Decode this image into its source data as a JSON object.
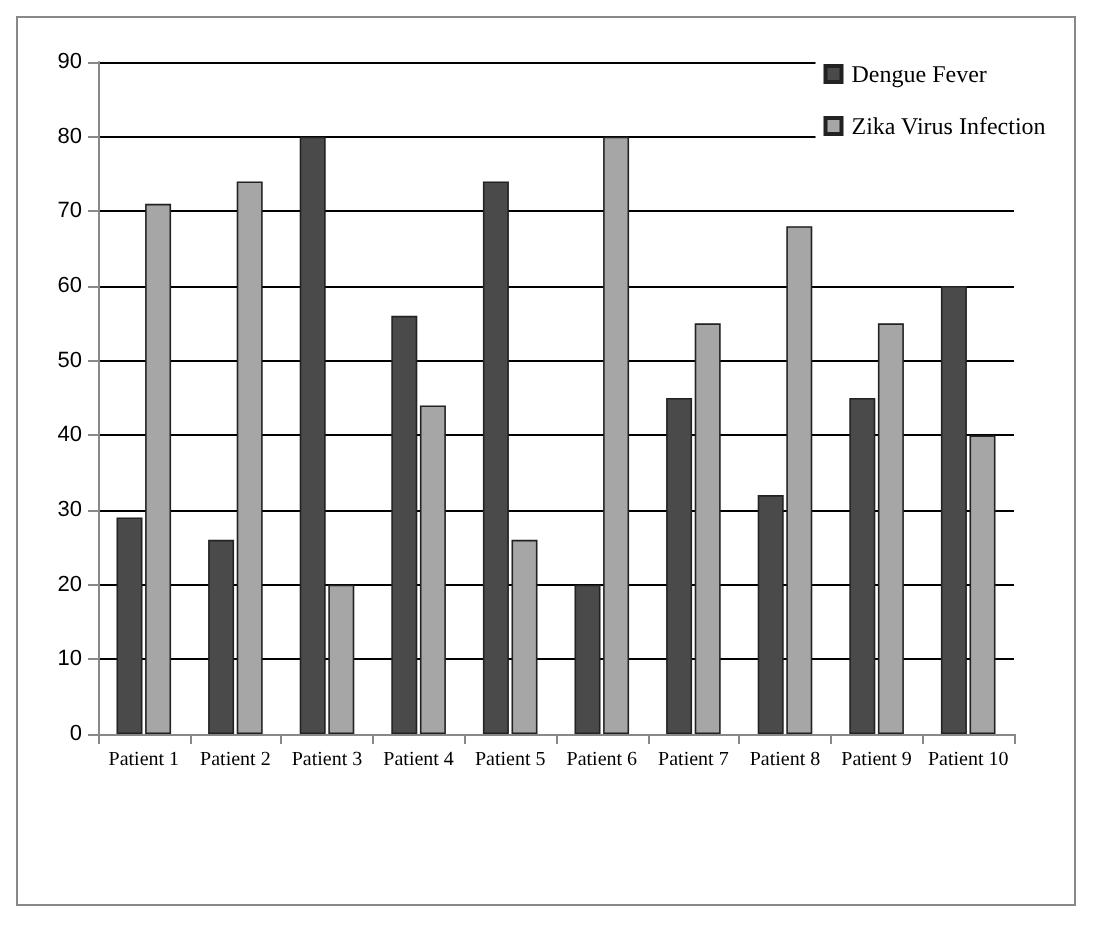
{
  "chart_data": {
    "type": "bar",
    "categories": [
      "Patient 1",
      "Patient 2",
      "Patient 3",
      "Patient 4",
      "Patient 5",
      "Patient 6",
      "Patient 7",
      "Patient 8",
      "Patient 9",
      "Patient 10"
    ],
    "series": [
      {
        "name": "Dengue Fever",
        "color": "#4a4a4a",
        "values": [
          29,
          26,
          80,
          56,
          74,
          20,
          45,
          32,
          45,
          60
        ]
      },
      {
        "name": "Zika Virus Infection",
        "color": "#a6a6a6",
        "values": [
          71,
          74,
          20,
          44,
          26,
          80,
          55,
          68,
          55,
          40
        ]
      }
    ],
    "ylim": [
      0,
      90
    ],
    "yticks": [
      0,
      10,
      20,
      30,
      40,
      50,
      60,
      70,
      80,
      90
    ],
    "grid": "y",
    "legend": "top right"
  }
}
